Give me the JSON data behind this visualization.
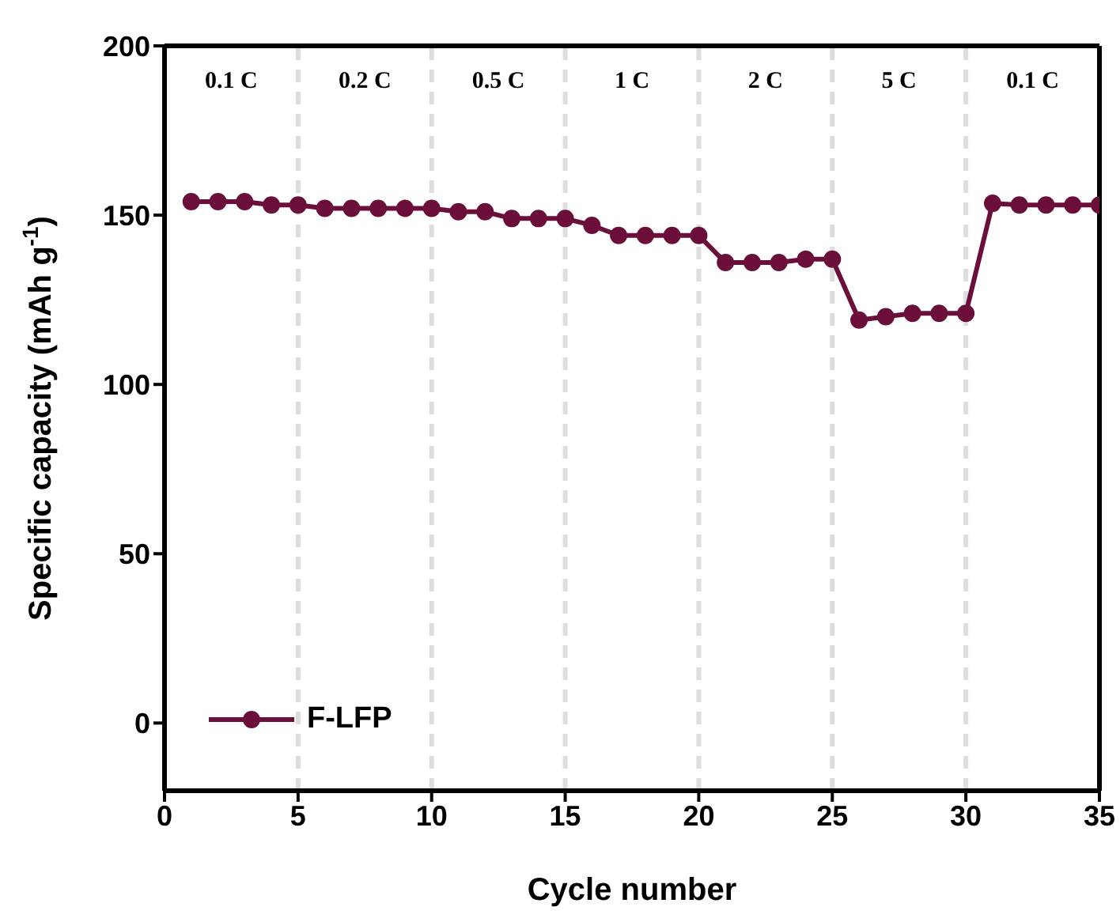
{
  "chart_data": {
    "type": "line",
    "xlabel": "Cycle number",
    "ylabel": "Specific capacity (mAh g$^{-1}$)",
    "x": [
      1,
      2,
      3,
      4,
      5,
      6,
      7,
      8,
      9,
      10,
      11,
      12,
      13,
      14,
      15,
      16,
      17,
      18,
      19,
      20,
      21,
      22,
      23,
      24,
      25,
      26,
      27,
      28,
      29,
      30,
      31,
      32,
      33,
      34,
      35
    ],
    "series": [
      {
        "name": "F-LFP",
        "color": "#6b0f3a",
        "values": [
          154,
          154,
          154,
          153,
          153,
          152,
          152,
          152,
          152,
          152,
          151,
          151,
          149,
          149,
          149,
          147,
          144,
          144,
          144,
          144,
          136,
          136,
          136,
          137,
          137,
          119,
          120,
          121,
          121,
          121,
          153.5,
          153,
          153,
          153,
          153
        ]
      }
    ],
    "xlim": [
      0,
      35
    ],
    "xticks": [
      0,
      5,
      10,
      15,
      20,
      25,
      30,
      35
    ],
    "ylim": [
      -20,
      200
    ],
    "yticks": [
      0,
      50,
      100,
      150,
      200
    ],
    "ref_lines": [
      {
        "axis": "x",
        "value": 5,
        "color": "#dddddd",
        "line_style": "dashed"
      },
      {
        "axis": "x",
        "value": 10,
        "color": "#dddddd",
        "line_style": "dashed"
      },
      {
        "axis": "x",
        "value": 15,
        "color": "#dddddd",
        "line_style": "dashed"
      },
      {
        "axis": "x",
        "value": 20,
        "color": "#dddddd",
        "line_style": "dashed"
      },
      {
        "axis": "x",
        "value": 25,
        "color": "#dddddd",
        "line_style": "dashed"
      },
      {
        "axis": "x",
        "value": 30,
        "color": "#dddddd",
        "line_style": "dashed"
      }
    ],
    "annotations": [
      "0.1 C",
      "0.2 C",
      "0.5 C",
      "1 C",
      "2 C",
      "5 C",
      "0.1 C"
    ],
    "legend": "bottom left",
    "marker": "circle",
    "line_style": "solid",
    "grid": false
  }
}
